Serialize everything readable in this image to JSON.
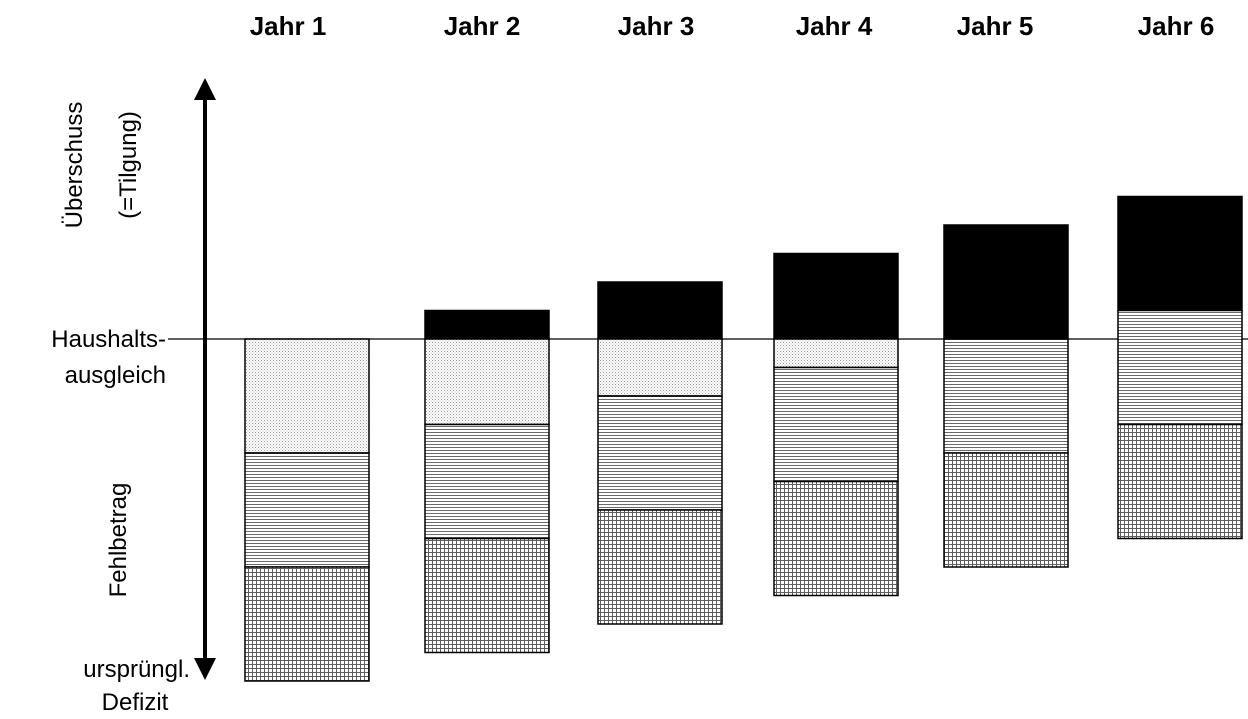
{
  "headers": [
    "Jahr 1",
    "Jahr 2",
    "Jahr 3",
    "Jahr 4",
    "Jahr 5",
    "Jahr 6"
  ],
  "labels": {
    "surplus_line1": "Überschuss",
    "surplus_line2": "(=Tilgung)",
    "balance_line1": "Haushalts-",
    "balance_line2": "ausgleich",
    "deficit": "Fehlbetrag",
    "original_line1": "ursprüngl.",
    "original_line2": "Defizit"
  },
  "chart_data": {
    "type": "bar",
    "stacked": true,
    "baseline": "Haushaltsausgleich",
    "categories": [
      "Jahr 1",
      "Jahr 2",
      "Jahr 3",
      "Jahr 4",
      "Jahr 5",
      "Jahr 6"
    ],
    "total_deficit": 6,
    "segments": [
      {
        "year": "Jahr 1",
        "pattern": "dotted",
        "from": 0,
        "to": -2
      },
      {
        "year": "Jahr 1",
        "pattern": "horizontal-lines",
        "from": -2,
        "to": -4
      },
      {
        "year": "Jahr 1",
        "pattern": "grid",
        "from": -4,
        "to": -6
      },
      {
        "year": "Jahr 2",
        "pattern": "solid-black",
        "from": 0.5,
        "to": 0
      },
      {
        "year": "Jahr 2",
        "pattern": "dotted",
        "from": 0,
        "to": -1.5
      },
      {
        "year": "Jahr 2",
        "pattern": "horizontal-lines",
        "from": -1.5,
        "to": -3.5
      },
      {
        "year": "Jahr 2",
        "pattern": "grid",
        "from": -3.5,
        "to": -5.5
      },
      {
        "year": "Jahr 3",
        "pattern": "solid-black",
        "from": 1,
        "to": 0
      },
      {
        "year": "Jahr 3",
        "pattern": "dotted",
        "from": 0,
        "to": -1
      },
      {
        "year": "Jahr 3",
        "pattern": "horizontal-lines",
        "from": -1,
        "to": -3
      },
      {
        "year": "Jahr 3",
        "pattern": "grid",
        "from": -3,
        "to": -5
      },
      {
        "year": "Jahr 4",
        "pattern": "solid-black",
        "from": 1.5,
        "to": 0
      },
      {
        "year": "Jahr 4",
        "pattern": "dotted",
        "from": 0,
        "to": -0.5
      },
      {
        "year": "Jahr 4",
        "pattern": "horizontal-lines",
        "from": -0.5,
        "to": -2.5
      },
      {
        "year": "Jahr 4",
        "pattern": "grid",
        "from": -2.5,
        "to": -4.5
      },
      {
        "year": "Jahr 5",
        "pattern": "solid-black",
        "from": 2,
        "to": 0
      },
      {
        "year": "Jahr 5",
        "pattern": "horizontal-lines",
        "from": 0,
        "to": -2
      },
      {
        "year": "Jahr 5",
        "pattern": "grid",
        "from": -2,
        "to": -4
      },
      {
        "year": "Jahr 6",
        "pattern": "solid-black",
        "from": 2.5,
        "to": 0.5
      },
      {
        "year": "Jahr 6",
        "pattern": "horizontal-lines",
        "from": 0.5,
        "to": -1.5
      },
      {
        "year": "Jahr 6",
        "pattern": "grid",
        "from": -1.5,
        "to": -3.5
      }
    ]
  }
}
